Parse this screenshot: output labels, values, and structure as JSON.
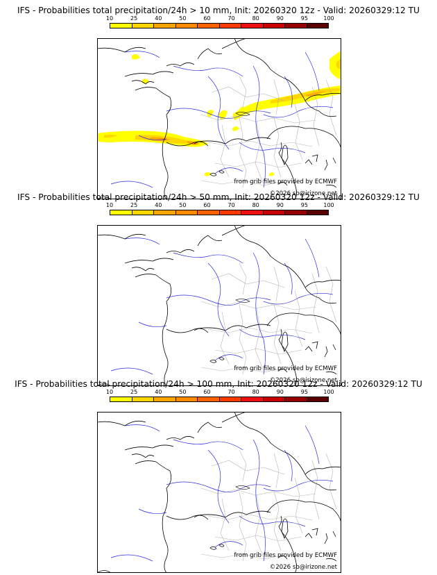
{
  "colorbar": {
    "ticks": [
      "10",
      "25",
      "40",
      "50",
      "60",
      "70",
      "80",
      "90",
      "95",
      "100"
    ],
    "colors": [
      "#ffff00",
      "#ffd700",
      "#ffa500",
      "#ff8c00",
      "#ff6000",
      "#ff3a00",
      "#ee1010",
      "#c80000",
      "#960000",
      "#5a0000"
    ]
  },
  "panels": [
    {
      "title": "IFS - Probabilities total precipitation/24h > 10 mm, Init: 20260320 12z - Valid: 20260329:12 TU",
      "source_label": "from grib files provided by ECMWF",
      "copyright_label": "©2026 sb@irizone.net",
      "has_precip": true
    },
    {
      "title": "IFS - Probabilities total precipitation/24h > 50 mm, Init: 20260320 12z - Valid: 20260329:12 TU",
      "source_label": "from grib files provided by ECMWF",
      "copyright_label": "©2026 sb@irizone.net",
      "has_precip": false
    },
    {
      "title": "IFS - Probabilities total precipitation/24h > 100 mm, Init: 20260320 12z - Valid: 20260329:12 TU",
      "source_label": "from grib files provided by ECMWF",
      "copyright_label": "©2026 sb@irizone.net",
      "has_precip": false
    }
  ]
}
